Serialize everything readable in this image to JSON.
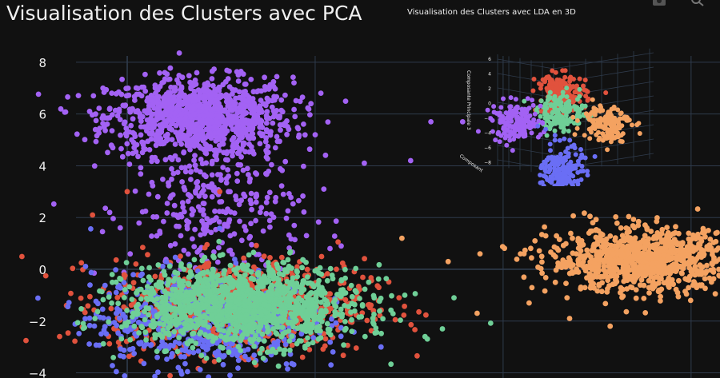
{
  "title": "Visualisation des Clusters avec PCA",
  "colors": {
    "background": "#111111",
    "grid": "#2f3b4c",
    "text": "#f0f0f0",
    "cluster_purple": "#a362f4",
    "cluster_red": "#e1523d",
    "cluster_green": "#6fcf97",
    "cluster_blue": "#6a6ef5",
    "cluster_orange": "#f4a261"
  },
  "toolbar": {
    "camera_icon": "camera-icon",
    "zoom_icon": "zoom-icon"
  },
  "chart_data": [
    {
      "type": "scatter",
      "title": "Visualisation des Clusters avec PCA",
      "xlabel": "",
      "ylabel": "",
      "xlim": [
        -4.4,
        20.5
      ],
      "ylim": [
        -4.2,
        8.8
      ],
      "yticks": [
        8,
        6,
        4,
        2,
        0,
        -2,
        -4
      ],
      "ytick_labels": [
        "8",
        "6",
        "4",
        "2",
        "0",
        "−2",
        "−4"
      ],
      "xgrid": [
        0,
        6.5,
        13,
        19.5
      ],
      "grid": true,
      "legend": "none",
      "series": [
        {
          "color": "#a362f4",
          "center": [
            2.5,
            5.9
          ],
          "spread": [
            1.6,
            0.75
          ],
          "n": 1000,
          "extra_points": [
            [
              -1.1,
              5.4
            ],
            [
              -0.5,
              4.7
            ],
            [
              -1.3,
              6.1
            ],
            [
              1.3,
              7.6
            ],
            [
              5.8,
              5.9
            ],
            [
              10.5,
              5.7
            ],
            [
              11.6,
              5.7
            ],
            [
              9.8,
              4.2
            ],
            [
              8.2,
              4.1
            ],
            [
              6.5,
              5.2
            ],
            [
              4.6,
              2.2
            ],
            [
              6.2,
              1.3
            ],
            [
              7.4,
              0.9
            ],
            [
              3.5,
              3.0
            ],
            [
              2.2,
              2.8
            ],
            [
              5.4,
              2.9
            ],
            [
              6.8,
              3.1
            ]
          ]
        },
        {
          "color": "#a362f4",
          "center": [
            3.1,
            2.3
          ],
          "spread": [
            1.5,
            1.4
          ],
          "n": 300
        },
        {
          "color": "#e1523d",
          "center": [
            3.8,
            -1.4
          ],
          "spread": [
            2.2,
            0.9
          ],
          "n": 800,
          "extra_points": [
            [
              0,
              3.0
            ],
            [
              3.2,
              3.0
            ],
            [
              -1.2,
              2.1
            ],
            [
              7.5,
              0.1
            ],
            [
              8.7,
              -0.7
            ],
            [
              9.4,
              -1.1
            ],
            [
              -2.1,
              -1.4
            ]
          ]
        },
        {
          "color": "#6a6ef5",
          "center": [
            2.5,
            -2.0
          ],
          "spread": [
            1.9,
            1.0
          ],
          "n": 550
        },
        {
          "color": "#6fcf97",
          "center": [
            4.0,
            -1.4
          ],
          "spread": [
            2.0,
            0.75
          ],
          "n": 1300,
          "extra_points": [
            [
              10.9,
              -2.3
            ],
            [
              10.3,
              -2.6
            ],
            [
              11.3,
              -1.1
            ],
            [
              9.6,
              -1.0
            ]
          ]
        },
        {
          "color": "#f4a261",
          "center": [
            17.8,
            0.35
          ],
          "spread": [
            1.6,
            0.6
          ],
          "n": 900,
          "extra_points": [
            [
              9.5,
              1.2
            ],
            [
              12.1,
              -1.7
            ],
            [
              13.9,
              -1.3
            ],
            [
              15.3,
              -1.9
            ],
            [
              16.7,
              -2.2
            ],
            [
              14.1,
              1.1
            ],
            [
              12.2,
              0.6
            ],
            [
              16.1,
              1.8
            ],
            [
              20.1,
              1.5
            ],
            [
              13.6,
              0.6
            ],
            [
              11.1,
              0.3
            ],
            [
              14.9,
              0.1
            ]
          ]
        }
      ]
    },
    {
      "type": "scatter",
      "title": "Visualisation des Clusters avec LDA en 3D",
      "zlabel": "Composante Principale 3",
      "xlabel": "Composant",
      "zticks": [
        "6",
        "4",
        "2",
        "0",
        "−2",
        "−4",
        "−6",
        "−8"
      ],
      "grid": true,
      "series": [
        {
          "color": "#e1523d",
          "center": [
            0.0,
            0.0,
            3.0
          ],
          "n": 180
        },
        {
          "color": "#6fcf97",
          "center": [
            0.0,
            0.0,
            1.0
          ],
          "n": 150
        },
        {
          "color": "#a362f4",
          "center": [
            -4.0,
            0.0,
            0.0
          ],
          "n": 160
        },
        {
          "color": "#f4a261",
          "center": [
            4.0,
            0.0,
            0.0
          ],
          "n": 140
        },
        {
          "color": "#6a6ef5",
          "center": [
            0.0,
            0.0,
            -5.5
          ],
          "n": 220
        }
      ]
    }
  ]
}
